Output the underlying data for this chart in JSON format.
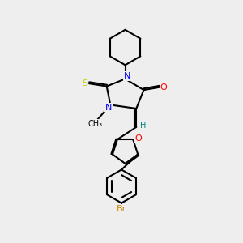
{
  "background_color": "#eeeeee",
  "line_color": "#000000",
  "bond_width": 1.5,
  "colors": {
    "N": "#0000ff",
    "O": "#ff0000",
    "S": "#cccc00",
    "Br": "#cc8800",
    "H": "#008080",
    "C": "#000000"
  },
  "figsize": [
    3.0,
    3.0
  ],
  "dpi": 100
}
